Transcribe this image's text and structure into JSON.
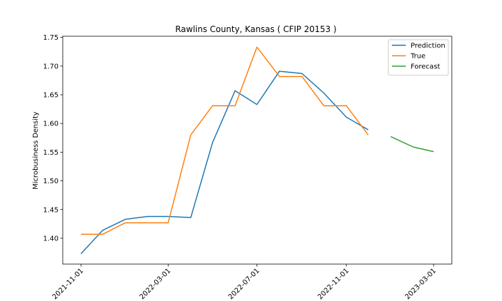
{
  "chart_data": {
    "type": "line",
    "title": "Rawlins County, Kansas ( CFIP 20153 )",
    "xlabel": "",
    "ylabel": "Microbusiness Density",
    "ylim": [
      1.355,
      1.752
    ],
    "xlim": [
      "2021-10-07",
      "2023-03-26"
    ],
    "x_tick_labels": [
      "2021-11-01",
      "2022-03-01",
      "2022-07-01",
      "2022-11-01",
      "2023-03-01"
    ],
    "y_tick_values": [
      1.4,
      1.45,
      1.5,
      1.55,
      1.6,
      1.65,
      1.7,
      1.75
    ],
    "y_tick_labels": [
      "1.40",
      "1.45",
      "1.50",
      "1.55",
      "1.60",
      "1.65",
      "1.70",
      "1.75"
    ],
    "legend_position": "top-right",
    "grid": false,
    "series": [
      {
        "name": "Prediction",
        "color": "#1f77b4",
        "x": [
          "2021-11-01",
          "2021-12-01",
          "2022-01-01",
          "2022-02-01",
          "2022-03-01",
          "2022-04-01",
          "2022-05-01",
          "2022-06-01",
          "2022-07-01",
          "2022-08-01",
          "2022-09-01",
          "2022-10-01",
          "2022-11-01",
          "2022-12-01"
        ],
        "values": [
          1.373,
          1.414,
          1.433,
          1.438,
          1.438,
          1.436,
          1.567,
          1.657,
          1.633,
          1.691,
          1.687,
          1.653,
          1.611,
          1.589
        ]
      },
      {
        "name": "True",
        "color": "#ff7f0e",
        "x": [
          "2021-11-01",
          "2021-12-01",
          "2022-01-01",
          "2022-02-01",
          "2022-03-01",
          "2022-04-01",
          "2022-05-01",
          "2022-06-01",
          "2022-07-01",
          "2022-08-01",
          "2022-09-01",
          "2022-10-01",
          "2022-11-01",
          "2022-12-01"
        ],
        "values": [
          1.407,
          1.407,
          1.427,
          1.427,
          1.427,
          1.58,
          1.631,
          1.631,
          1.733,
          1.682,
          1.682,
          1.631,
          1.631,
          1.58
        ]
      },
      {
        "name": "Forecast",
        "color": "#2ca02c",
        "x": [
          "2023-01-01",
          "2023-02-01",
          "2023-03-01"
        ],
        "values": [
          1.577,
          1.559,
          1.551
        ]
      }
    ]
  }
}
